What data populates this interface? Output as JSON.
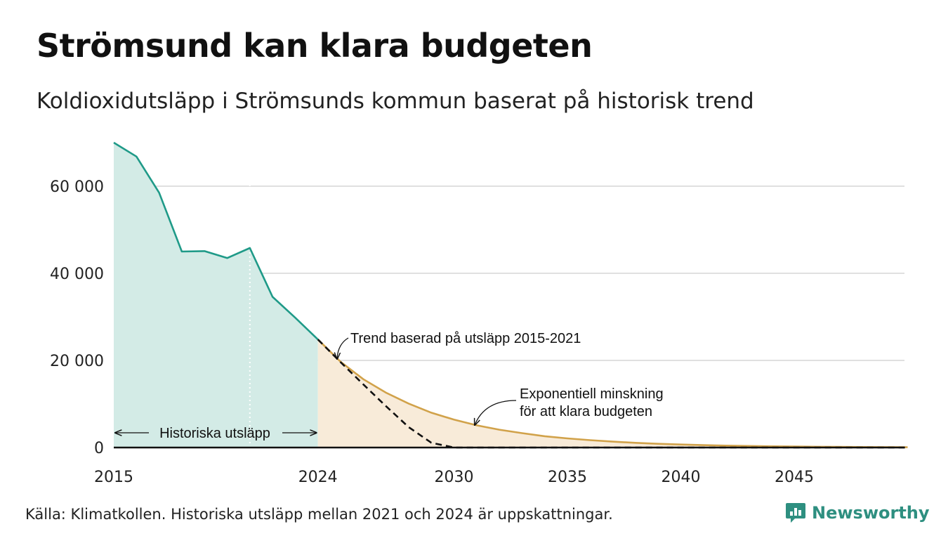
{
  "header": {
    "title": "Strömsund kan klara budgeten",
    "subtitle": "Koldioxidutsläpp i Strömsunds kommun baserat på historisk trend"
  },
  "footer": {
    "source": "Källa: Klimatkollen. Historiska utsläpp mellan 2021 och 2024 är uppskattningar.",
    "brand": "Newsworthy"
  },
  "colors": {
    "historical_line": "#1f9a88",
    "historical_fill": "#d3ebe6",
    "budget_line": "#d1a24a",
    "budget_fill": "#f8ebd9",
    "trend_line": "#111111",
    "grid": "#e0e0e0",
    "brand": "#2e8f80"
  },
  "chart_data": {
    "type": "area",
    "xlim": [
      2015,
      2050
    ],
    "ylim": [
      0,
      70000
    ],
    "x_ticks": [
      2015,
      2024,
      2030,
      2035,
      2040,
      2045
    ],
    "x_tick_labels": [
      "2015",
      "2024",
      "2030",
      "2035",
      "2040",
      "2045"
    ],
    "y_ticks": [
      0,
      20000,
      40000,
      60000
    ],
    "y_tick_labels": [
      "0",
      "20 000",
      "40 000",
      "60 000"
    ],
    "grid": true,
    "series": [
      {
        "key": "historical",
        "style": "solid-area",
        "points": [
          [
            2015,
            70000
          ],
          [
            2016,
            66800
          ],
          [
            2017,
            58500
          ],
          [
            2018,
            45000
          ],
          [
            2019,
            45100
          ],
          [
            2020,
            43500
          ],
          [
            2021,
            45800
          ],
          [
            2022,
            34600
          ],
          [
            2023,
            29800
          ],
          [
            2024,
            24800
          ]
        ]
      },
      {
        "key": "budget",
        "style": "solid-area",
        "points": [
          [
            2024,
            24800
          ],
          [
            2025,
            19700
          ],
          [
            2026,
            15700
          ],
          [
            2027,
            12600
          ],
          [
            2028,
            10100
          ],
          [
            2029,
            8000
          ],
          [
            2030,
            6400
          ],
          [
            2031,
            5100
          ],
          [
            2032,
            4100
          ],
          [
            2033,
            3300
          ],
          [
            2034,
            2600
          ],
          [
            2035,
            2100
          ],
          [
            2036,
            1700
          ],
          [
            2037,
            1350
          ],
          [
            2038,
            1080
          ],
          [
            2039,
            860
          ],
          [
            2040,
            690
          ],
          [
            2041,
            550
          ],
          [
            2042,
            440
          ],
          [
            2043,
            350
          ],
          [
            2044,
            280
          ],
          [
            2045,
            220
          ],
          [
            2046,
            180
          ],
          [
            2047,
            140
          ],
          [
            2048,
            110
          ],
          [
            2049,
            90
          ],
          [
            2050,
            70
          ]
        ]
      },
      {
        "key": "trend",
        "style": "dashed",
        "points": [
          [
            2024,
            24800
          ],
          [
            2025,
            19600
          ],
          [
            2026,
            14500
          ],
          [
            2027,
            9500
          ],
          [
            2028,
            4700
          ],
          [
            2029,
            1100
          ],
          [
            2030,
            0
          ],
          [
            2050,
            0
          ]
        ]
      }
    ],
    "marker_year": 2021,
    "annotations": {
      "historical_range": "Historiska utsläpp",
      "trend": "Trend baserad på utsläpp 2015-2021",
      "budget_line1": "Exponentiell minskning",
      "budget_line2": "för att klara budgeten"
    }
  }
}
